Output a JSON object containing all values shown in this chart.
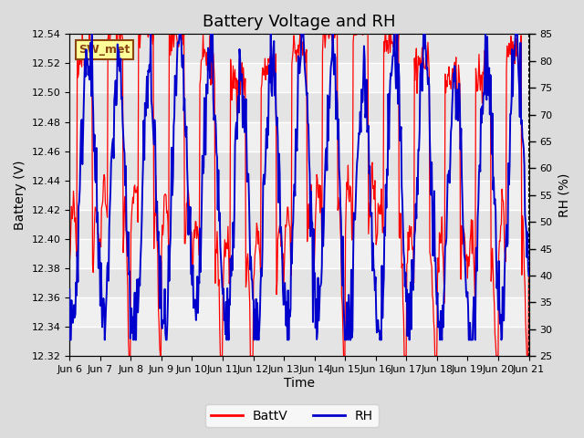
{
  "title": "Battery Voltage and RH",
  "xlabel": "Time",
  "ylabel_left": "Battery (V)",
  "ylabel_right": "RH (%)",
  "station_label": "SW_met",
  "x_tick_positions": [
    0,
    1,
    2,
    3,
    4,
    5,
    6,
    7,
    8,
    9,
    10,
    11,
    12,
    13,
    14,
    15
  ],
  "x_tick_labels": [
    "Jun 6",
    "Jun 7",
    "Jun 8",
    "Jun 9",
    "Jun 10",
    "Jun 11",
    "Jun 12",
    "Jun 13",
    "Jun 14",
    "Jun 15",
    "Jun 16",
    "Jun 17",
    "Jun 18",
    "Jun 19",
    "Jun 20",
    "Jun 21"
  ],
  "batt_ylim": [
    12.32,
    12.54
  ],
  "batt_yticks": [
    12.32,
    12.34,
    12.36,
    12.38,
    12.4,
    12.42,
    12.44,
    12.46,
    12.48,
    12.5,
    12.52,
    12.54
  ],
  "rh_ylim": [
    25,
    85
  ],
  "rh_yticks": [
    25,
    30,
    35,
    40,
    45,
    50,
    55,
    60,
    65,
    70,
    75,
    80,
    85
  ],
  "batt_color": "#FF0000",
  "rh_color": "#0000CC",
  "background_color": "#DCDCDC",
  "plot_bg_color": "#F0F0F0",
  "grid_color": "#FFFFFF",
  "legend_batt": "BattV",
  "legend_rh": "RH",
  "title_fontsize": 13,
  "axis_label_fontsize": 10,
  "tick_fontsize": 8,
  "n_days": 15,
  "points_per_day": 48
}
